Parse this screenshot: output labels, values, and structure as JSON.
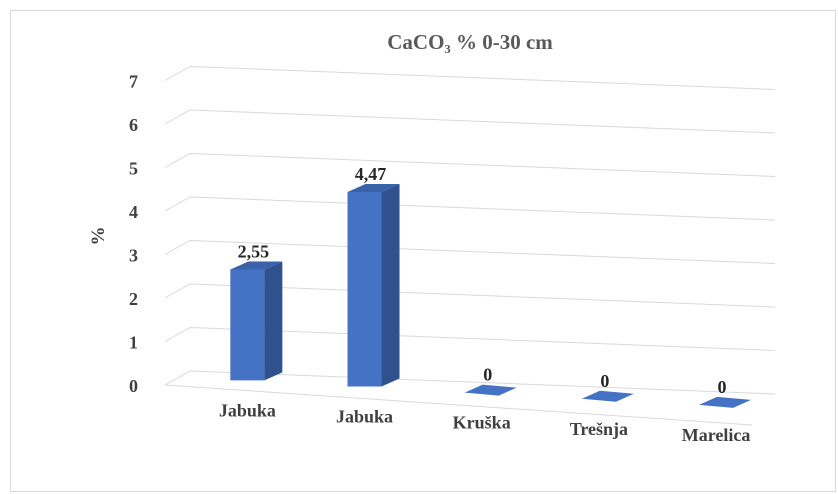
{
  "chart_data": {
    "type": "bar",
    "title": "CaCO₃ % 0-30 cm",
    "xlabel": "",
    "ylabel": "%",
    "categories": [
      "Jabuka",
      "Jabuka",
      "Kruška",
      "Trešnja",
      "Marelica"
    ],
    "values": [
      2.55,
      4.47,
      0,
      0,
      0
    ],
    "data_labels": [
      "2,55",
      "4,47",
      "0",
      "0",
      "0"
    ],
    "ylim": [
      0,
      7
    ],
    "yticks": [
      "0",
      "1",
      "2",
      "3",
      "4",
      "5",
      "6",
      "7"
    ],
    "grid": true,
    "legend": "none",
    "colors": {
      "bar_front": "#4472c4",
      "bar_side": "#2f528f",
      "bar_top": "#3a62a8"
    }
  }
}
